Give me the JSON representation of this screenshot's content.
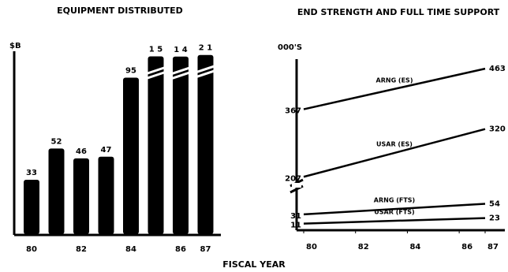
{
  "chart_data": [
    {
      "type": "bar",
      "title": "EQUIPMENT DISTRIBUTED",
      "ylabel": "$B",
      "xlabel": "FISCAL YEAR",
      "categories": [
        "80",
        null,
        "82",
        null,
        "84",
        null,
        "86",
        "87"
      ],
      "values": [
        33,
        52,
        46,
        47,
        95,
        115,
        114,
        121
      ],
      "value_labels": [
        "33",
        "52",
        "46",
        "47",
        "95",
        "1 5",
        "1 4",
        "2 1"
      ],
      "color": "#000000",
      "ylim": [
        0,
        100
      ],
      "axis_break": true
    },
    {
      "type": "line",
      "title": "END STRENGTH AND FULL TIME SUPPORT",
      "ylabel": "000'S",
      "x": [
        80,
        87
      ],
      "xticks": [
        80,
        82,
        84,
        86,
        87
      ],
      "xlim": [
        80,
        87
      ],
      "ylim": [
        0,
        480
      ],
      "axis_break": true,
      "series": [
        {
          "name": "ARNG (ES)",
          "color": "#000000",
          "values": [
            367,
            463
          ]
        },
        {
          "name": "USAR (ES)",
          "color": "#000000",
          "values": [
            207,
            320
          ]
        },
        {
          "name": "ARNG (FTS)",
          "color": "#000000",
          "values": [
            31,
            54
          ]
        },
        {
          "name": "USAR (FTS)",
          "color": "#000000",
          "values": [
            11,
            23
          ]
        }
      ]
    }
  ]
}
